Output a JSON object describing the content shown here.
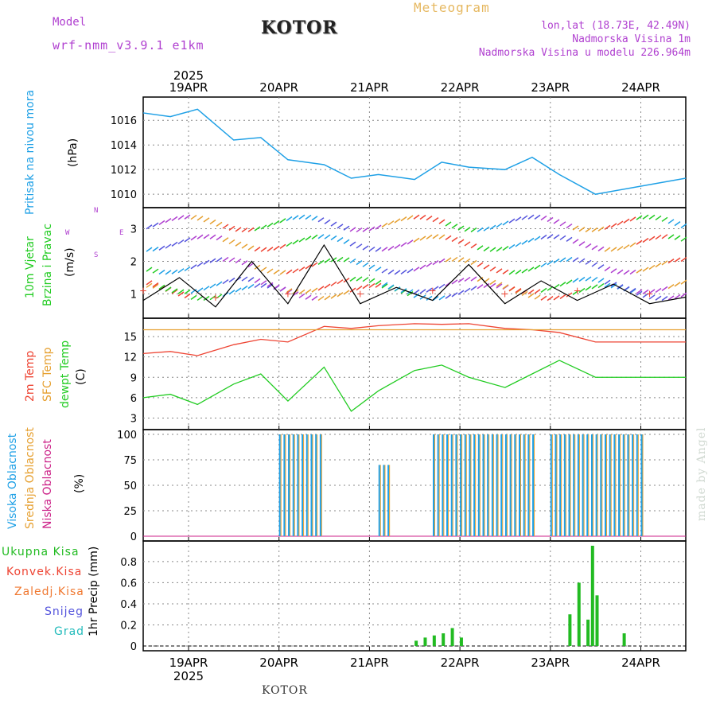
{
  "header": {
    "model_label": "Model",
    "model_name": "wrf-nmm_v3.9.1 e1km",
    "title": "KOTOR",
    "meteogram": "Meteogram",
    "lonlat": "lon,lat (18.73E, 42.49N)",
    "elevation": "Nadmorska Visina 1m",
    "model_elevation": "Nadmorska Visina u modelu 226.964m",
    "watermark": "made by Angel",
    "footer_station": "KOTOR"
  },
  "colors": {
    "pressure": "#1ea0e6",
    "temp2m": "#ee4433",
    "sfc_temp": "#e6a030",
    "dewpoint": "#22cc22",
    "cloud_high": "#1ea0e6",
    "cloud_mid": "#e6a030",
    "cloud_low": "#cc2288",
    "precip_total": "#22bb22",
    "conv": "#ee4433",
    "frozen": "#f07830",
    "snow": "#5555dd",
    "hail": "#22bbbb",
    "label_purple": "#b040d0"
  },
  "time_axis": {
    "top_year": "2025",
    "bottom_year": "2025",
    "days": [
      "19APR",
      "20APR",
      "21APR",
      "22APR",
      "23APR",
      "24APR"
    ]
  },
  "panels": {
    "pressure": {
      "label_main": "Pritisak na nivou mora",
      "unit": "(hPa)"
    },
    "wind": {
      "label_1": "10m Vjetar",
      "label_2": "Brzina i Pravac",
      "unit": "(m/s)",
      "compass_n": "N",
      "compass_s": "S",
      "compass_w": "W",
      "compass_e": "E"
    },
    "temp": {
      "label_1": "2m Temp",
      "label_2": "SFC Temp",
      "label_3": "dewpt Temp",
      "unit": "(C)"
    },
    "cloud": {
      "label_1": "Visoka Oblacnost",
      "label_2": "Srednja Oblacnost",
      "label_3": "Niska Oblacnost",
      "unit": "(%)"
    },
    "precip": {
      "label_1": "Ukupna Kisa",
      "label_2": "Konvek.Kisa",
      "label_3": "Zaledj.Kisa",
      "label_4": "Snijeg",
      "label_5": "Grad",
      "unit": "1hr Precip (mm)"
    }
  },
  "chart_data": [
    {
      "type": "line",
      "title": "Pritisak na nivou mora",
      "ylabel": "(hPa)",
      "ylim": [
        1009.3,
        1017.5
      ],
      "yticks": [
        "1010",
        "1012",
        "1014",
        "1016"
      ],
      "x_days": [
        0,
        0.3,
        0.6,
        1.0,
        1.3,
        1.6,
        2.0,
        2.3,
        2.6,
        3.0,
        3.3,
        3.6,
        4.0,
        4.3,
        4.6,
        5.0
      ],
      "series": [
        {
          "values": [
            1016.6,
            1016.3,
            1016.9,
            1014.4,
            1014.6,
            1012.8,
            1012.4,
            1011.3,
            1011.6,
            1011.2,
            1012.6,
            1012.2,
            1012.0,
            1013.0,
            1011.6,
            1010.0
          ]
        }
      ]
    },
    {
      "type": "line",
      "title": "10m Vjetar Brzina i Pravac",
      "ylabel": "(m/s)",
      "ylim": [
        0.4,
        3.5
      ],
      "yticks": [
        "1",
        "2",
        "3"
      ],
      "series": [
        {
          "values": [
            0.8,
            1.5,
            0.6,
            2.0,
            0.7,
            2.5,
            0.7,
            1.2,
            0.8,
            1.9,
            0.7,
            1.4,
            0.8,
            1.3,
            0.7,
            0.9
          ]
        }
      ]
    },
    {
      "type": "line",
      "title": "2m Temp / SFC Temp / dewpt Temp",
      "ylabel": "(C)",
      "ylim": [
        2,
        17
      ],
      "yticks": [
        "3",
        "6",
        "9",
        "12",
        "15"
      ],
      "x_days": [
        0,
        0.3,
        0.6,
        1.0,
        1.3,
        1.6,
        2.0,
        2.3,
        2.6,
        3.0,
        3.3,
        3.6,
        4.0,
        4.3,
        4.6,
        5.0
      ],
      "series": [
        {
          "name": "2m Temp",
          "values": [
            12.5,
            12.8,
            12.2,
            13.8,
            14.6,
            14.2,
            16.5,
            16.2,
            16.6,
            17.0,
            16.8,
            17.0,
            16.2,
            16.0,
            15.6,
            14.2
          ]
        },
        {
          "name": "SFC Temp",
          "values": [
            16,
            16,
            16,
            16,
            16,
            16,
            16,
            16,
            16,
            16,
            16,
            16,
            16,
            16,
            16,
            16
          ]
        },
        {
          "name": "dewpt Temp",
          "values": [
            6,
            6.5,
            5,
            8,
            9.5,
            5.5,
            10.5,
            4,
            7,
            10,
            10.8,
            9,
            7.5,
            9.5,
            11.5,
            9
          ]
        }
      ]
    },
    {
      "type": "bar",
      "title": "Visoka / Srednja / Niska Oblacnost",
      "ylabel": "(%)",
      "ylim": [
        0,
        100
      ],
      "yticks": [
        "0",
        "25",
        "50",
        "75",
        "100"
      ],
      "segments_days": [
        [
          1.0,
          1.5,
          100
        ],
        [
          2.1,
          2.2,
          70
        ],
        [
          2.7,
          3.8,
          100
        ],
        [
          4.0,
          5.0,
          100
        ]
      ]
    },
    {
      "type": "bar",
      "title": "1hr Precip",
      "ylabel": "(mm)",
      "ylim": [
        0,
        0.95
      ],
      "yticks": [
        "0",
        "0.2",
        "0.4",
        "0.6",
        "0.8"
      ],
      "x_days": [
        3.0,
        3.1,
        3.2,
        3.3,
        3.4,
        3.5,
        4.7,
        4.8,
        4.9,
        4.95,
        5.0,
        5.3
      ],
      "values": [
        0.05,
        0.08,
        0.1,
        0.12,
        0.17,
        0.08,
        0.3,
        0.6,
        0.25,
        0.95,
        0.48,
        0.12
      ]
    }
  ]
}
